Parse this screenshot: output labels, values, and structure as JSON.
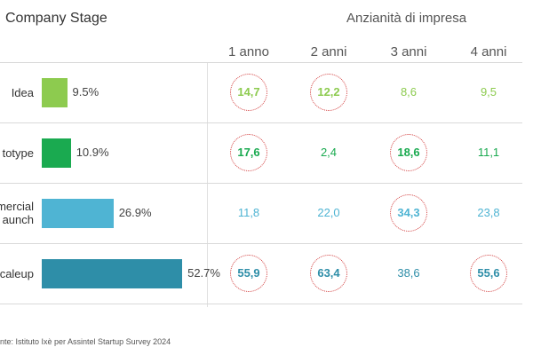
{
  "header": {
    "stage_title": "Company Stage",
    "age_title": "Anzianità di impresa"
  },
  "source": "nte: Istituto Ixè per Assintel Startup Survey 2024",
  "chart_data": {
    "type": "bar",
    "title": "Company Stage",
    "categories": [
      "Idea",
      "totype",
      "mercial\naunch",
      "caleup"
    ],
    "series": [
      {
        "values": [
          9.5,
          10.9,
          26.9,
          52.7
        ]
      }
    ],
    "value_labels": [
      "9.5%",
      "10.9%",
      "26.9%",
      "52.7%"
    ],
    "colors": [
      "#8dcb4f",
      "#1aaa50",
      "#4fb4d3",
      "#2e8ea8"
    ],
    "table": {
      "title": "Anzianità di impresa",
      "columns": [
        "1 anno",
        "2 anni",
        "3 anni",
        "4 anni"
      ],
      "rows": [
        {
          "values": [
            "14,7",
            "12,2",
            "8,6",
            "9,5"
          ],
          "highlighted": [
            true,
            true,
            false,
            false
          ]
        },
        {
          "values": [
            "17,6",
            "2,4",
            "18,6",
            "11,1"
          ],
          "highlighted": [
            true,
            false,
            true,
            false
          ]
        },
        {
          "values": [
            "11,8",
            "22,0",
            "34,3",
            "23,8"
          ],
          "highlighted": [
            false,
            false,
            true,
            false
          ]
        },
        {
          "values": [
            "55,9",
            "63,4",
            "38,6",
            "55,6"
          ],
          "highlighted": [
            true,
            true,
            false,
            true
          ]
        }
      ]
    }
  }
}
